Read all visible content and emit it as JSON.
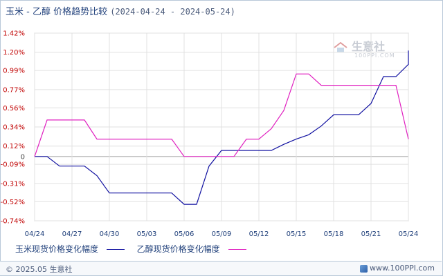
{
  "header": {
    "title": "玉米 - 乙醇 价格趋势比较",
    "date_range": "(2024-04-24 - 2024-05-24)"
  },
  "watermark": {
    "text": "生意社",
    "sub": "100PPI.COM"
  },
  "footer": {
    "copyright": "© 2025.05 生意社",
    "site": "www.100PPI.com"
  },
  "colors": {
    "corn": "#1010a0",
    "ethanol": "#e020c0",
    "grid": "#d0d0d0",
    "tick_red": "#c00000"
  },
  "chart_data": {
    "type": "line",
    "title": "玉米 - 乙醇 价格趋势比较",
    "ylim": [
      -0.74,
      1.42
    ],
    "y_ticks": [
      {
        "value": 1.42,
        "label": "1.42%"
      },
      {
        "value": 1.2,
        "label": "1.20%"
      },
      {
        "value": 0.99,
        "label": "0.99%"
      },
      {
        "value": 0.77,
        "label": "0.77%"
      },
      {
        "value": 0.56,
        "label": "0.56%"
      },
      {
        "value": 0.34,
        "label": "0.34%"
      },
      {
        "value": 0.12,
        "label": "0.12%"
      },
      {
        "value": 0.0,
        "label": "0"
      },
      {
        "value": -0.09,
        "label": "-0.09%"
      },
      {
        "value": -0.31,
        "label": "-0.31%"
      },
      {
        "value": -0.52,
        "label": "-0.52%"
      },
      {
        "value": -0.74,
        "label": "-0.74%"
      }
    ],
    "x_ticks": [
      {
        "day": 0,
        "label": "04/24"
      },
      {
        "day": 3,
        "label": "04/27"
      },
      {
        "day": 6,
        "label": "04/30"
      },
      {
        "day": 9,
        "label": "05/03"
      },
      {
        "day": 12,
        "label": "05/06"
      },
      {
        "day": 15,
        "label": "05/09"
      },
      {
        "day": 18,
        "label": "05/12"
      },
      {
        "day": 21,
        "label": "05/15"
      },
      {
        "day": 24,
        "label": "05/18"
      },
      {
        "day": 27,
        "label": "05/21"
      },
      {
        "day": 30,
        "label": "05/24"
      }
    ],
    "x_range": [
      0,
      30
    ],
    "series": [
      {
        "name": "玉米现货价格变化幅度",
        "color": "#1010a0",
        "points": [
          [
            0,
            0.0
          ],
          [
            1,
            0.0
          ],
          [
            2,
            -0.11
          ],
          [
            3,
            -0.11
          ],
          [
            4,
            -0.11
          ],
          [
            5,
            -0.22
          ],
          [
            6,
            -0.42
          ],
          [
            7,
            -0.42
          ],
          [
            8,
            -0.42
          ],
          [
            9,
            -0.42
          ],
          [
            10,
            -0.42
          ],
          [
            11,
            -0.42
          ],
          [
            12,
            -0.55
          ],
          [
            13,
            -0.55
          ],
          [
            14,
            -0.11
          ],
          [
            15,
            0.07
          ],
          [
            16,
            0.07
          ],
          [
            17,
            0.07
          ],
          [
            18,
            0.07
          ],
          [
            19,
            0.07
          ],
          [
            20,
            0.14
          ],
          [
            21,
            0.2
          ],
          [
            22,
            0.25
          ],
          [
            23,
            0.35
          ],
          [
            24,
            0.48
          ],
          [
            25,
            0.48
          ],
          [
            26,
            0.48
          ],
          [
            27,
            0.61
          ],
          [
            28,
            0.92
          ],
          [
            29,
            0.92
          ],
          [
            30,
            1.06
          ],
          [
            30.9,
            1.22
          ]
        ]
      },
      {
        "name": "乙醇现货价格变化幅度",
        "color": "#e020c0",
        "points": [
          [
            0,
            0.0
          ],
          [
            1,
            0.42
          ],
          [
            2,
            0.42
          ],
          [
            3,
            0.42
          ],
          [
            4,
            0.42
          ],
          [
            5,
            0.2
          ],
          [
            6,
            0.2
          ],
          [
            7,
            0.2
          ],
          [
            8,
            0.2
          ],
          [
            9,
            0.2
          ],
          [
            10,
            0.2
          ],
          [
            11,
            0.2
          ],
          [
            12,
            0.0
          ],
          [
            13,
            0.0
          ],
          [
            14,
            0.0
          ],
          [
            15,
            0.0
          ],
          [
            16,
            0.0
          ],
          [
            17,
            0.2
          ],
          [
            18,
            0.2
          ],
          [
            19,
            0.32
          ],
          [
            20,
            0.53
          ],
          [
            21,
            0.95
          ],
          [
            22,
            0.95
          ],
          [
            23,
            0.82
          ],
          [
            24,
            0.82
          ],
          [
            25,
            0.82
          ],
          [
            26,
            0.82
          ],
          [
            27,
            0.82
          ],
          [
            28,
            0.82
          ],
          [
            29,
            0.82
          ],
          [
            30,
            0.2
          ],
          [
            30.9,
            0.2
          ]
        ]
      }
    ],
    "legend_placement": "bottom",
    "grid": true
  }
}
